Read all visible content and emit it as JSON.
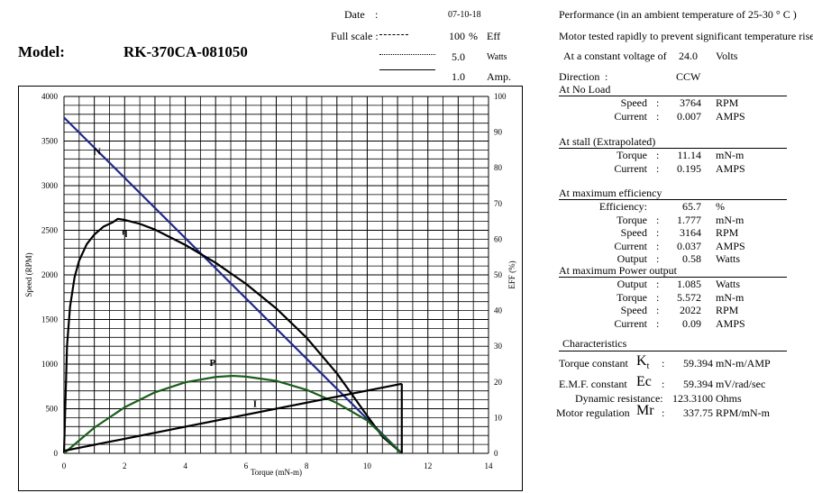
{
  "header": {
    "date_label": "Date",
    "date_colon": ":",
    "date_value": "07-10-18",
    "fullscale_label": "Full scale :",
    "fs_rows": [
      {
        "value": "100",
        "unit_sep": "%",
        "unit": "Eff"
      },
      {
        "value": "5.0",
        "unit": "Watts"
      },
      {
        "value": "1.0",
        "unit": "Amp."
      }
    ],
    "model_label": "Model:",
    "model_value": "RK-370CA-081050"
  },
  "info": {
    "performance": "Performance (in an ambient temperature of 25-30 ° C )",
    "tested": "Motor tested rapidly to prevent significant temperature rise.",
    "voltage_label": "At a constant voltage of",
    "voltage_value": "24.0",
    "voltage_unit": "Volts",
    "direction_label": "Direction",
    "direction_colon": ":",
    "direction_value": "CCW",
    "no_load": {
      "title": "At No Load",
      "rows": [
        {
          "label": "Speed",
          "colon": ":",
          "value": "3764",
          "unit": "RPM"
        },
        {
          "label": "Current",
          "colon": ":",
          "value": "0.007",
          "unit": "AMPS"
        }
      ]
    },
    "stall": {
      "title": "At stall (Extrapolated)",
      "rows": [
        {
          "label": "Torque",
          "colon": ":",
          "value": "11.14",
          "unit": "mN-m"
        },
        {
          "label": "Current",
          "colon": ":",
          "value": "0.195",
          "unit": "AMPS"
        }
      ]
    },
    "max_eff": {
      "title": "At maximum efficiency",
      "rows": [
        {
          "label": "Efficiency:",
          "colon": "",
          "value": "65.7",
          "unit": "%"
        },
        {
          "label": "Torque",
          "colon": ":",
          "value": "1.777",
          "unit": "mN-m"
        },
        {
          "label": "Speed",
          "colon": ":",
          "value": "3164",
          "unit": "RPM"
        },
        {
          "label": "Current",
          "colon": ":",
          "value": "0.037",
          "unit": "AMPS"
        },
        {
          "label": "Output",
          "colon": ":",
          "value": "0.58",
          "unit": "Watts"
        }
      ]
    },
    "max_power": {
      "title": "At maximum Power output",
      "rows": [
        {
          "label": "Output",
          "colon": ":",
          "value": "1.085",
          "unit": "Watts"
        },
        {
          "label": "Torque",
          "colon": ":",
          "value": "5.572",
          "unit": "mN-m"
        },
        {
          "label": "Speed",
          "colon": ":",
          "value": "2022",
          "unit": "RPM"
        },
        {
          "label": "Current",
          "colon": ":",
          "value": "0.09",
          "unit": "AMPS"
        }
      ]
    },
    "characteristics": {
      "title": "Characteristics",
      "rows": [
        {
          "label": "Torque constant",
          "symbol": "K",
          "sub": "t",
          "colon": ":",
          "value": "59.394",
          "unit": "mN-m/AMP"
        },
        {
          "label": "E.M.F. constant",
          "symbol": "Ec",
          "sub": "",
          "colon": ":",
          "value": "59.394",
          "unit": "mV/rad/sec"
        },
        {
          "label": "Dynamic resistance:",
          "symbol": "",
          "sub": "",
          "colon": "",
          "value": "123.3100",
          "unit": "Ohms"
        },
        {
          "label": "Motor regulation",
          "symbol": "Mr",
          "sub": "",
          "colon": ":",
          "value": "337.75",
          "unit": "RPM/mN-m"
        }
      ]
    }
  },
  "chart_data": {
    "type": "line",
    "xlabel": "Torque (mN-m)",
    "ylabel": "Speed (RPM)",
    "y2label": "EFF (%)",
    "xlim": [
      0,
      14
    ],
    "ylim": [
      0,
      4000
    ],
    "y2lim": [
      0,
      100
    ],
    "x_ticks": [
      "0",
      "2",
      "4",
      "6",
      "8",
      "10",
      "12",
      "14"
    ],
    "y_ticks": [
      "0",
      "500",
      "1000",
      "1500",
      "2000",
      "2500",
      "3000",
      "3500",
      "4000"
    ],
    "y2_ticks": [
      "0",
      "10",
      "20",
      "30",
      "40",
      "50",
      "60",
      "70",
      "80",
      "90",
      "100"
    ],
    "grid": true,
    "series": [
      {
        "name": "N",
        "color": "#1f2a8c",
        "axis": "speed",
        "x": [
          0,
          11.14
        ],
        "y": [
          3764,
          0
        ]
      },
      {
        "name": "η",
        "color": "#000000",
        "axis": "eff",
        "x": [
          0,
          0.1,
          0.2,
          0.35,
          0.5,
          0.75,
          1.0,
          1.3,
          1.6,
          1.777,
          2.0,
          2.5,
          3,
          4,
          5,
          6,
          7,
          8,
          9,
          10,
          10.5,
          11.14
        ],
        "y": [
          0,
          30.1,
          41.1,
          49.4,
          54.0,
          58.6,
          61.3,
          63.5,
          64.7,
          65.7,
          65.4,
          64.3,
          62.7,
          58.4,
          53.4,
          47.5,
          40.6,
          32.4,
          22.4,
          10.5,
          4.7,
          0
        ]
      },
      {
        "name": "P",
        "color": "#1b5e1b",
        "axis": "eff",
        "x": [
          0,
          1,
          2,
          3,
          4,
          5,
          5.572,
          6,
          7,
          8,
          9,
          10,
          11.14
        ],
        "y": [
          0,
          7.2,
          12.9,
          17.1,
          19.9,
          21.4,
          21.7,
          21.5,
          20.3,
          17.8,
          14.1,
          9.2,
          0
        ]
      },
      {
        "name": "I",
        "color": "#000000",
        "axis": "eff",
        "x": [
          0,
          11.14
        ],
        "y": [
          0.7,
          19.5
        ]
      }
    ],
    "stall_drop": {
      "x": 11.14,
      "y": 19.5
    }
  }
}
